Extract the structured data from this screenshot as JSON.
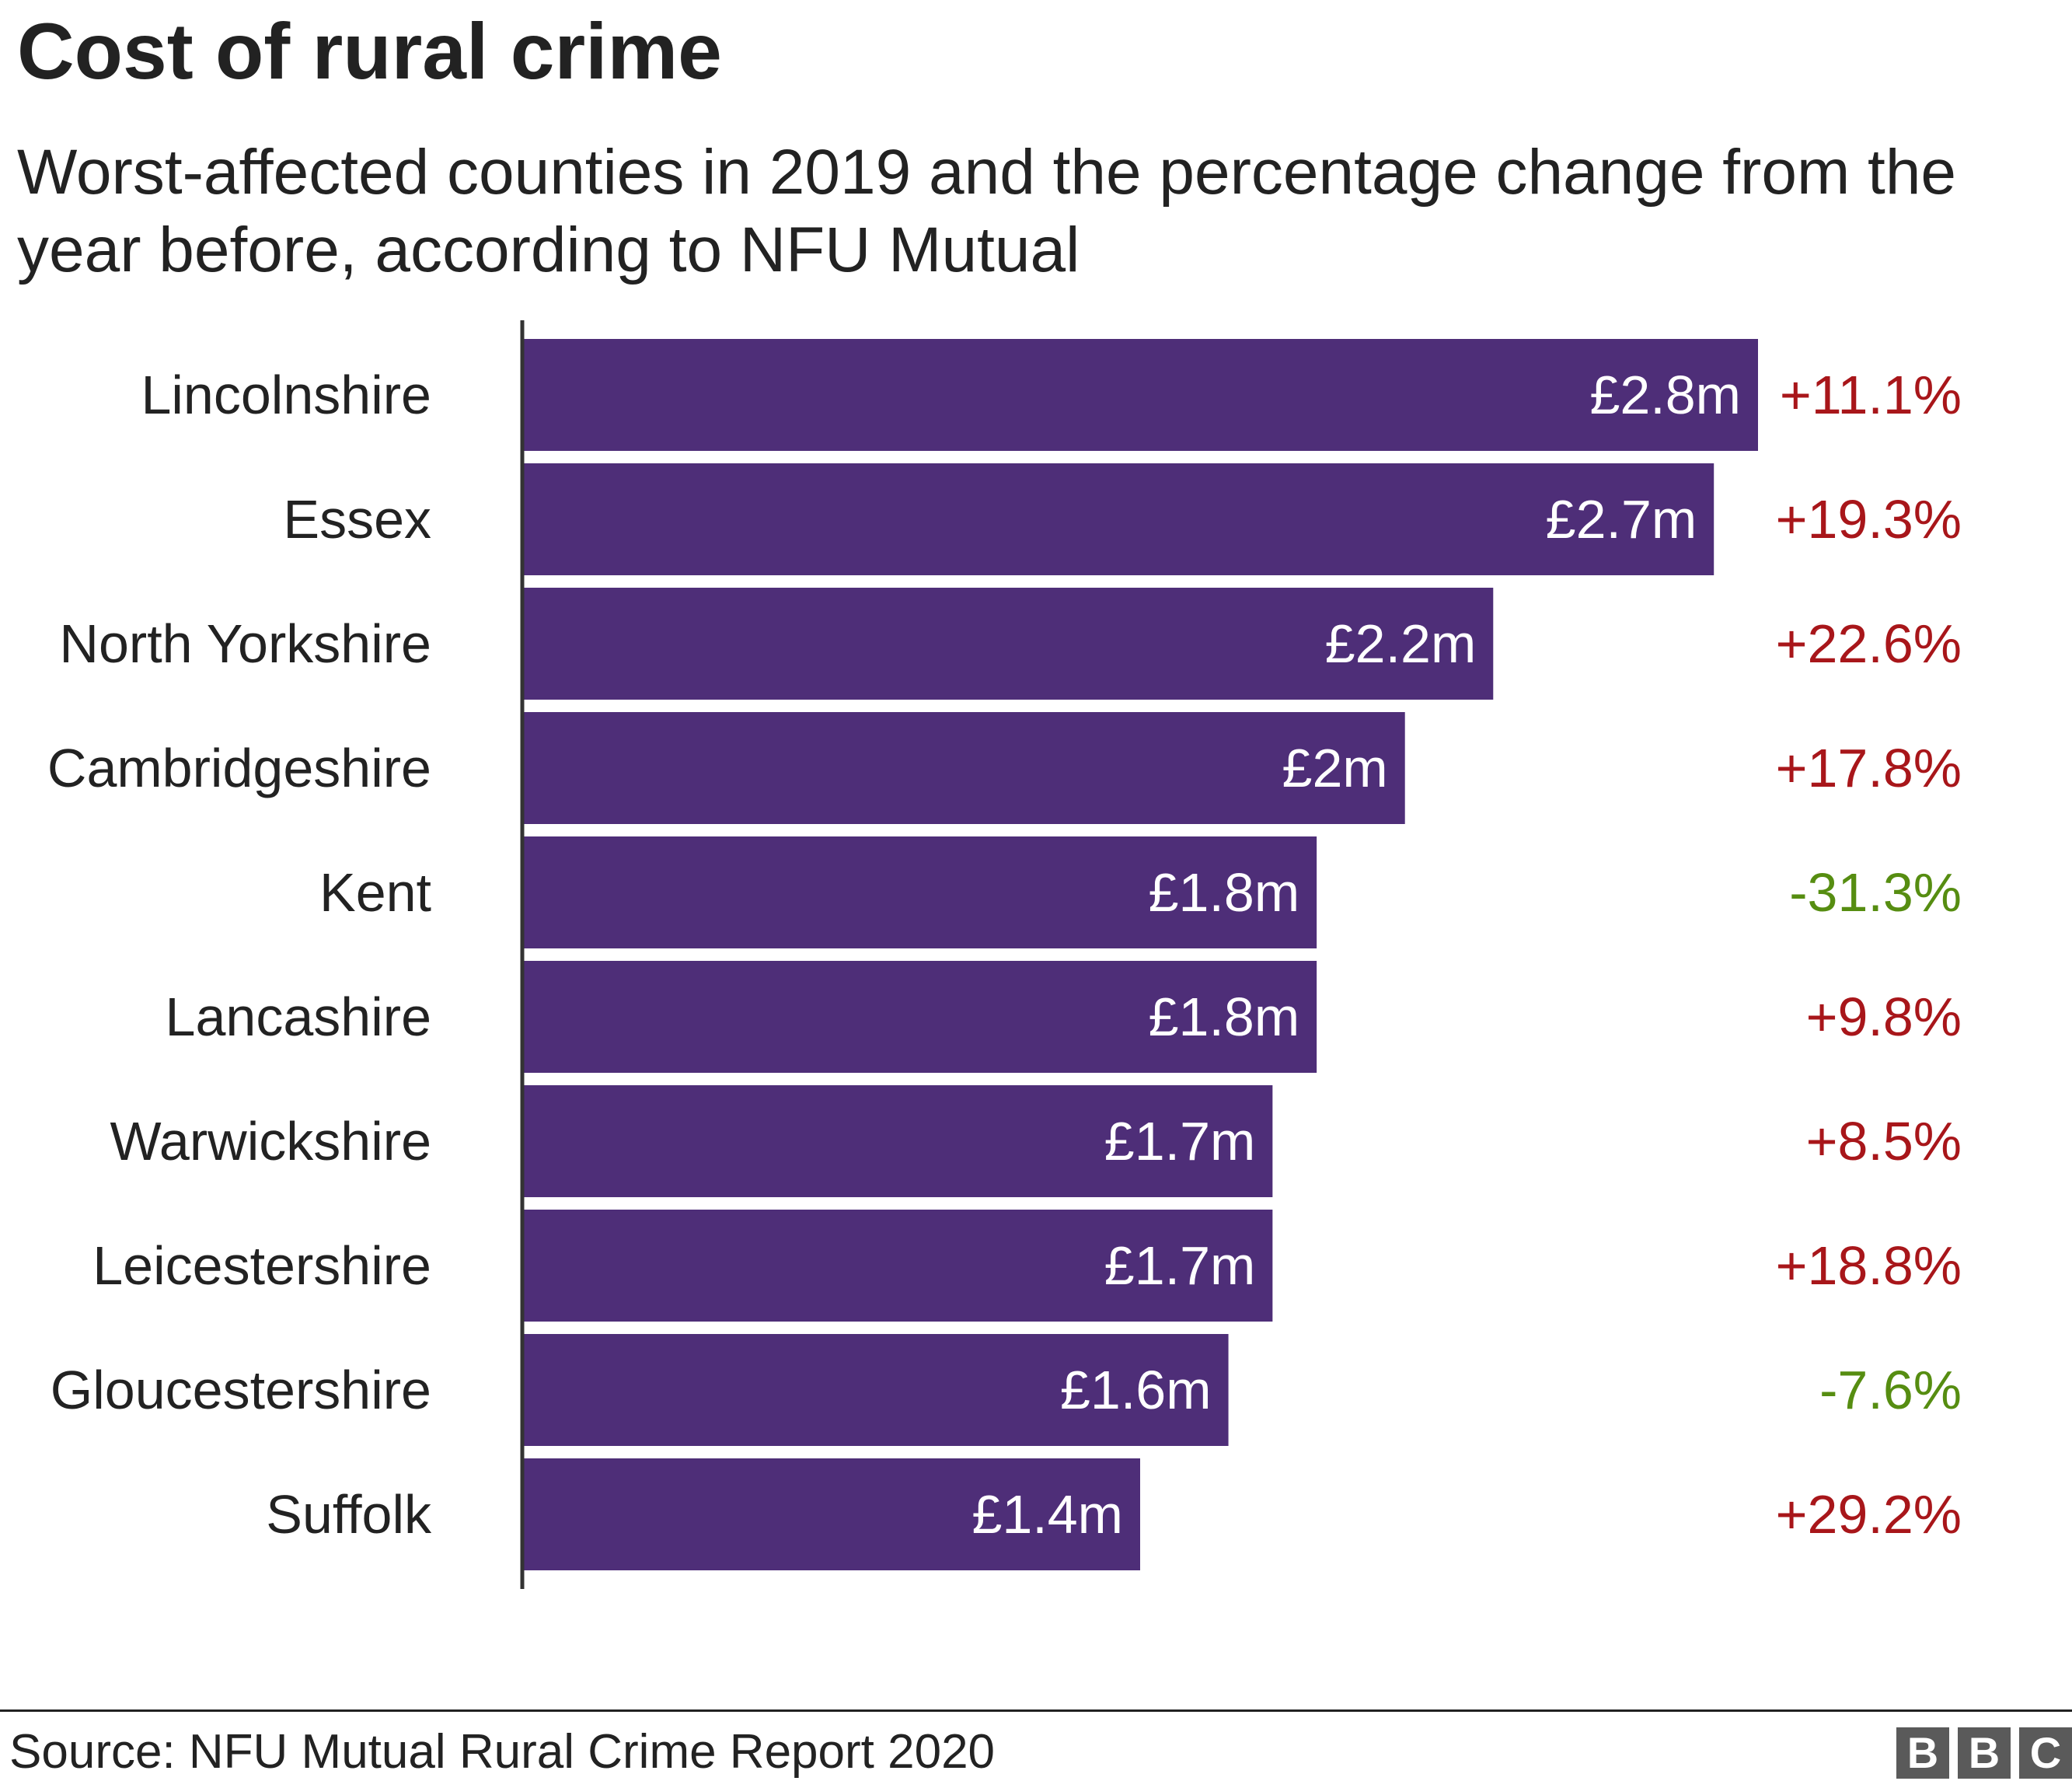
{
  "title": "Cost of rural crime",
  "subtitle": "Worst-affected counties in 2019 and the percentage change from the year before, according to NFU Mutual",
  "source": "Source: NFU Mutual Rural Crime Report 2020",
  "logo": [
    "B",
    "B",
    "C"
  ],
  "colors": {
    "bar": "#4e2e78",
    "bar_label": "#ffffff",
    "increase": "#a8161a",
    "decrease": "#568d11",
    "text": "#222222",
    "axis": "#333333"
  },
  "chart_data": {
    "type": "bar",
    "orientation": "horizontal",
    "title": "Cost of rural crime",
    "subtitle": "Worst-affected counties in 2019 and the percentage change from the year before, according to NFU Mutual",
    "categories": [
      "Lincolnshire",
      "Essex",
      "North Yorkshire",
      "Cambridgeshire",
      "Kent",
      "Lancashire",
      "Warwickshire",
      "Leicestershire",
      "Gloucestershire",
      "Suffolk"
    ],
    "values": [
      2.8,
      2.7,
      2.2,
      2.0,
      1.8,
      1.8,
      1.7,
      1.7,
      1.6,
      1.4
    ],
    "value_labels": [
      "£2.8m",
      "£2.7m",
      "£2.2m",
      "£2m",
      "£1.8m",
      "£1.8m",
      "£1.7m",
      "£1.7m",
      "£1.6m",
      "£1.4m"
    ],
    "pct_change": [
      11.1,
      19.3,
      22.6,
      17.8,
      -31.3,
      9.8,
      8.5,
      18.8,
      -7.6,
      29.2
    ],
    "pct_change_labels": [
      "+11.1%",
      "+19.3%",
      "+22.6%",
      "+17.8%",
      "-31.3%",
      "+9.8%",
      "+8.5%",
      "+18.8%",
      "-7.6%",
      "+29.2%"
    ],
    "xlim": [
      0,
      2.8
    ],
    "grid": false,
    "legend": "none"
  }
}
